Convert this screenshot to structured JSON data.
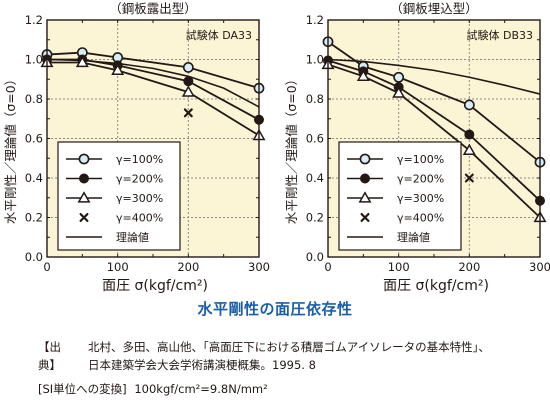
{
  "theme": {
    "plot_bg": "#fbf5d6",
    "grid": "#8a8a8a",
    "series_fill_100": "#d8eef7",
    "series_fill_200": "#231815",
    "caption_blue": "#1a5fa8"
  },
  "chart_data": [
    {
      "type": "line",
      "title": "（鋼板露出型）",
      "specimen": "試験体 DA33",
      "xlabel": "面圧 σ(kgf/cm²)",
      "ylabel": "水平剛性／理論値（σ=0）",
      "xlim": [
        0,
        300
      ],
      "ylim": [
        0,
        1.2
      ],
      "xticks": [
        "0",
        "100",
        "200",
        "300"
      ],
      "yticks": [
        "0.0",
        "0.2",
        "0.4",
        "0.6",
        "0.8",
        "1.0",
        "1.2"
      ],
      "grid": true,
      "legend_position": "bottom-left",
      "series": [
        {
          "name": "γ=100%",
          "marker": "circle-open",
          "x": [
            0,
            50,
            100,
            200,
            300
          ],
          "y": [
            1.025,
            1.035,
            1.01,
            0.96,
            0.855
          ]
        },
        {
          "name": "γ=200%",
          "marker": "circle-filled",
          "x": [
            0,
            50,
            100,
            200,
            300
          ],
          "y": [
            1.0,
            1.0,
            0.97,
            0.89,
            0.695
          ]
        },
        {
          "name": "γ=300%",
          "marker": "triangle",
          "x": [
            0,
            50,
            100,
            200,
            300
          ],
          "y": [
            0.985,
            0.985,
            0.945,
            0.835,
            0.615
          ]
        },
        {
          "name": "γ=400%",
          "marker": "x",
          "x": [
            200
          ],
          "y": [
            0.73
          ]
        },
        {
          "name": "理論値",
          "marker": "none",
          "x": [
            0,
            50,
            100,
            150,
            200,
            250,
            300
          ],
          "y": [
            1.0,
            0.995,
            0.98,
            0.955,
            0.915,
            0.855,
            0.76
          ]
        }
      ]
    },
    {
      "type": "line",
      "title": "（鋼板埋込型）",
      "specimen": "試験体 DB33",
      "xlabel": "面圧 σ(kgf/cm²)",
      "ylabel": "水平剛性／理論値（σ=0）",
      "xlim": [
        0,
        300
      ],
      "ylim": [
        0,
        1.2
      ],
      "xticks": [
        "0",
        "100",
        "200",
        "300"
      ],
      "yticks": [
        "0.0",
        "0.2",
        "0.4",
        "0.6",
        "0.8",
        "1.0",
        "1.2"
      ],
      "grid": true,
      "legend_position": "bottom-left",
      "series": [
        {
          "name": "γ=100%",
          "marker": "circle-open",
          "x": [
            0,
            50,
            100,
            200,
            300
          ],
          "y": [
            1.09,
            0.965,
            0.91,
            0.77,
            0.48
          ]
        },
        {
          "name": "γ=200%",
          "marker": "circle-filled",
          "x": [
            0,
            50,
            100,
            200,
            300
          ],
          "y": [
            0.995,
            0.94,
            0.86,
            0.62,
            0.285
          ]
        },
        {
          "name": "γ=300%",
          "marker": "triangle",
          "x": [
            0,
            50,
            100,
            200,
            300
          ],
          "y": [
            0.975,
            0.915,
            0.83,
            0.54,
            0.2
          ]
        },
        {
          "name": "γ=400%",
          "marker": "x",
          "x": [
            200
          ],
          "y": [
            0.4
          ]
        },
        {
          "name": "理論値",
          "marker": "none",
          "x": [
            0,
            50,
            100,
            150,
            200,
            250,
            300
          ],
          "y": [
            1.0,
            0.99,
            0.97,
            0.945,
            0.91,
            0.87,
            0.825
          ]
        }
      ]
    }
  ],
  "caption": "水平剛性の面圧依存性",
  "source": {
    "label": "【出典】",
    "line1": "北村、多田、高山他、「高面圧下における積層ゴムアイソレータの基本特性」、",
    "line2": "日本建築学会大会学術講演梗概集。1995. 8"
  },
  "si_note": {
    "label": "[SI単位への変換]",
    "value": "100kgf/cm²=9.8N/mm²"
  }
}
